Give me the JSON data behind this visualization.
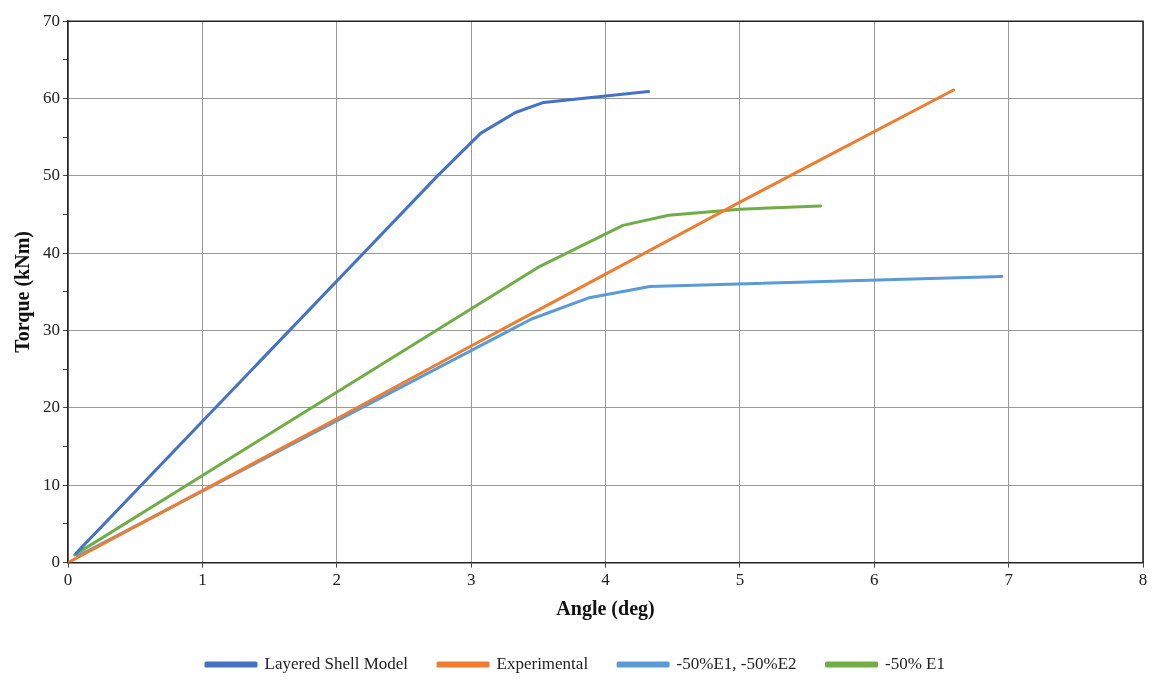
{
  "chart_data": {
    "type": "line",
    "xlabel": "Angle (deg)",
    "ylabel": "Torque (kNm)",
    "xlim": [
      0,
      8
    ],
    "xticks": [
      0,
      1,
      2,
      3,
      4,
      5,
      6,
      7,
      8
    ],
    "ylim": [
      0,
      70
    ],
    "yticks": [
      0,
      {
        "value": 5,
        "label": null
      },
      10,
      {
        "value": 15,
        "label": null
      },
      20,
      {
        "value": 25,
        "label": null
      },
      30,
      {
        "value": 35,
        "label": null
      },
      40,
      {
        "value": 45,
        "label": null
      },
      50,
      {
        "value": 55,
        "label": null
      },
      60,
      {
        "value": 65,
        "label": null
      },
      70
    ],
    "grid": true,
    "legend": "bottom",
    "marker": "none",
    "line_style": "solid",
    "series": [
      {
        "name": "Layered Shell Model",
        "color": "#4472c4",
        "x": [
          0.06,
          2.75,
          3.07,
          3.33,
          3.54,
          4.32
        ],
        "values": [
          1.2,
          50.0,
          55.5,
          58.2,
          59.5,
          60.9
        ]
      },
      {
        "name": "Experimental",
        "color": "#ed7d31",
        "x": [
          0,
          1,
          2,
          3,
          4,
          5,
          6.59
        ],
        "values": [
          0,
          9.3,
          18.6,
          28,
          37.3,
          46.6,
          61.1
        ]
      },
      {
        "name": "-50%E1, -50%E2",
        "color": "#5b9bd5",
        "x": [
          0.07,
          3.45,
          3.87,
          4.33,
          6.95
        ],
        "values": [
          0.8,
          31.5,
          34.2,
          35.7,
          37.0
        ]
      },
      {
        "name": "-50% E1",
        "color": "#70ad47",
        "x": [
          0.05,
          3.5,
          4.13,
          4.47,
          5.0,
          5.6
        ],
        "values": [
          1.0,
          38.2,
          43.6,
          44.9,
          45.7,
          46.1
        ]
      }
    ]
  }
}
